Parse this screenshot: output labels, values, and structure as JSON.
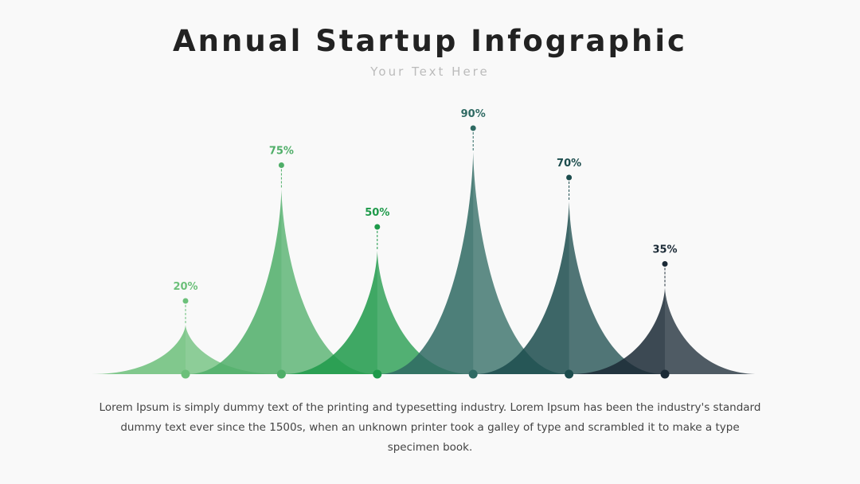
{
  "chart_data": {
    "type": "peak",
    "title": "Annual Startup Infographic",
    "subtitle": "Your Text Here",
    "values": [
      20,
      75,
      50,
      90,
      70,
      35
    ],
    "value_labels": [
      "20%",
      "75%",
      "50%",
      "90%",
      "70%",
      "35%"
    ],
    "colors": [
      "#6cc07a",
      "#4fae68",
      "#1e9a4a",
      "#2f6a63",
      "#1c4c4d",
      "#1b2a36"
    ],
    "description": "Lorem Ipsum is simply dummy text of the printing and typesetting industry. Lorem Ipsum has been the industry's standard dummy text ever since the 1500s, when an unknown printer took a galley of type and scrambled it to make a type specimen book."
  }
}
